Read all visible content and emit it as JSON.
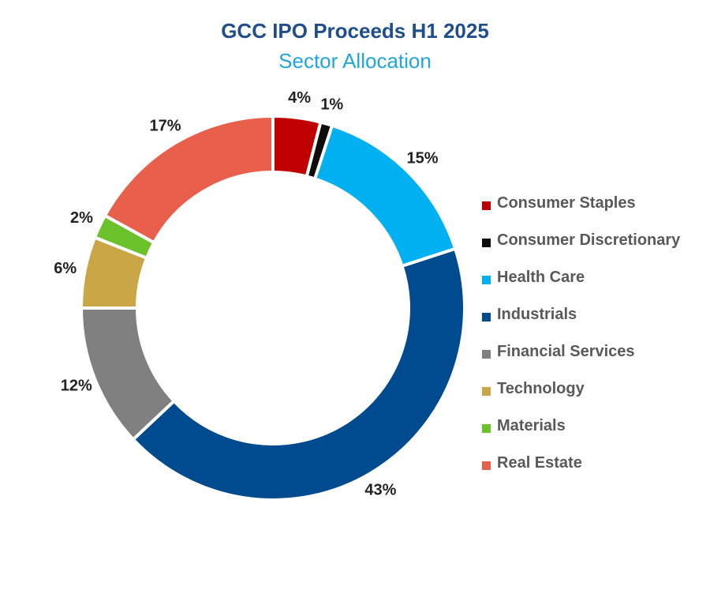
{
  "chart_data": {
    "type": "pie",
    "title": "GCC IPO Proceeds H1 2025",
    "subtitle": "Sector Allocation",
    "legend_position": "right",
    "slices": [
      {
        "name": "Consumer Staples",
        "value": 4,
        "label": "4%",
        "color": "#c00000"
      },
      {
        "name": "Consumer Discretionary",
        "value": 1,
        "label": "1%",
        "color": "#0d0d0d"
      },
      {
        "name": "Health Care",
        "value": 15,
        "label": "15%",
        "color": "#00b0f0"
      },
      {
        "name": "Industrials",
        "value": 43,
        "label": "43%",
        "color": "#004a8f"
      },
      {
        "name": "Financial Services",
        "value": 12,
        "label": "12%",
        "color": "#808080"
      },
      {
        "name": "Technology",
        "value": 6,
        "label": "6%",
        "color": "#c9a646"
      },
      {
        "name": "Materials",
        "value": 2,
        "label": "2%",
        "color": "#6cc22a"
      },
      {
        "name": "Real Estate",
        "value": 17,
        "label": "17%",
        "color": "#e8604c"
      }
    ]
  }
}
